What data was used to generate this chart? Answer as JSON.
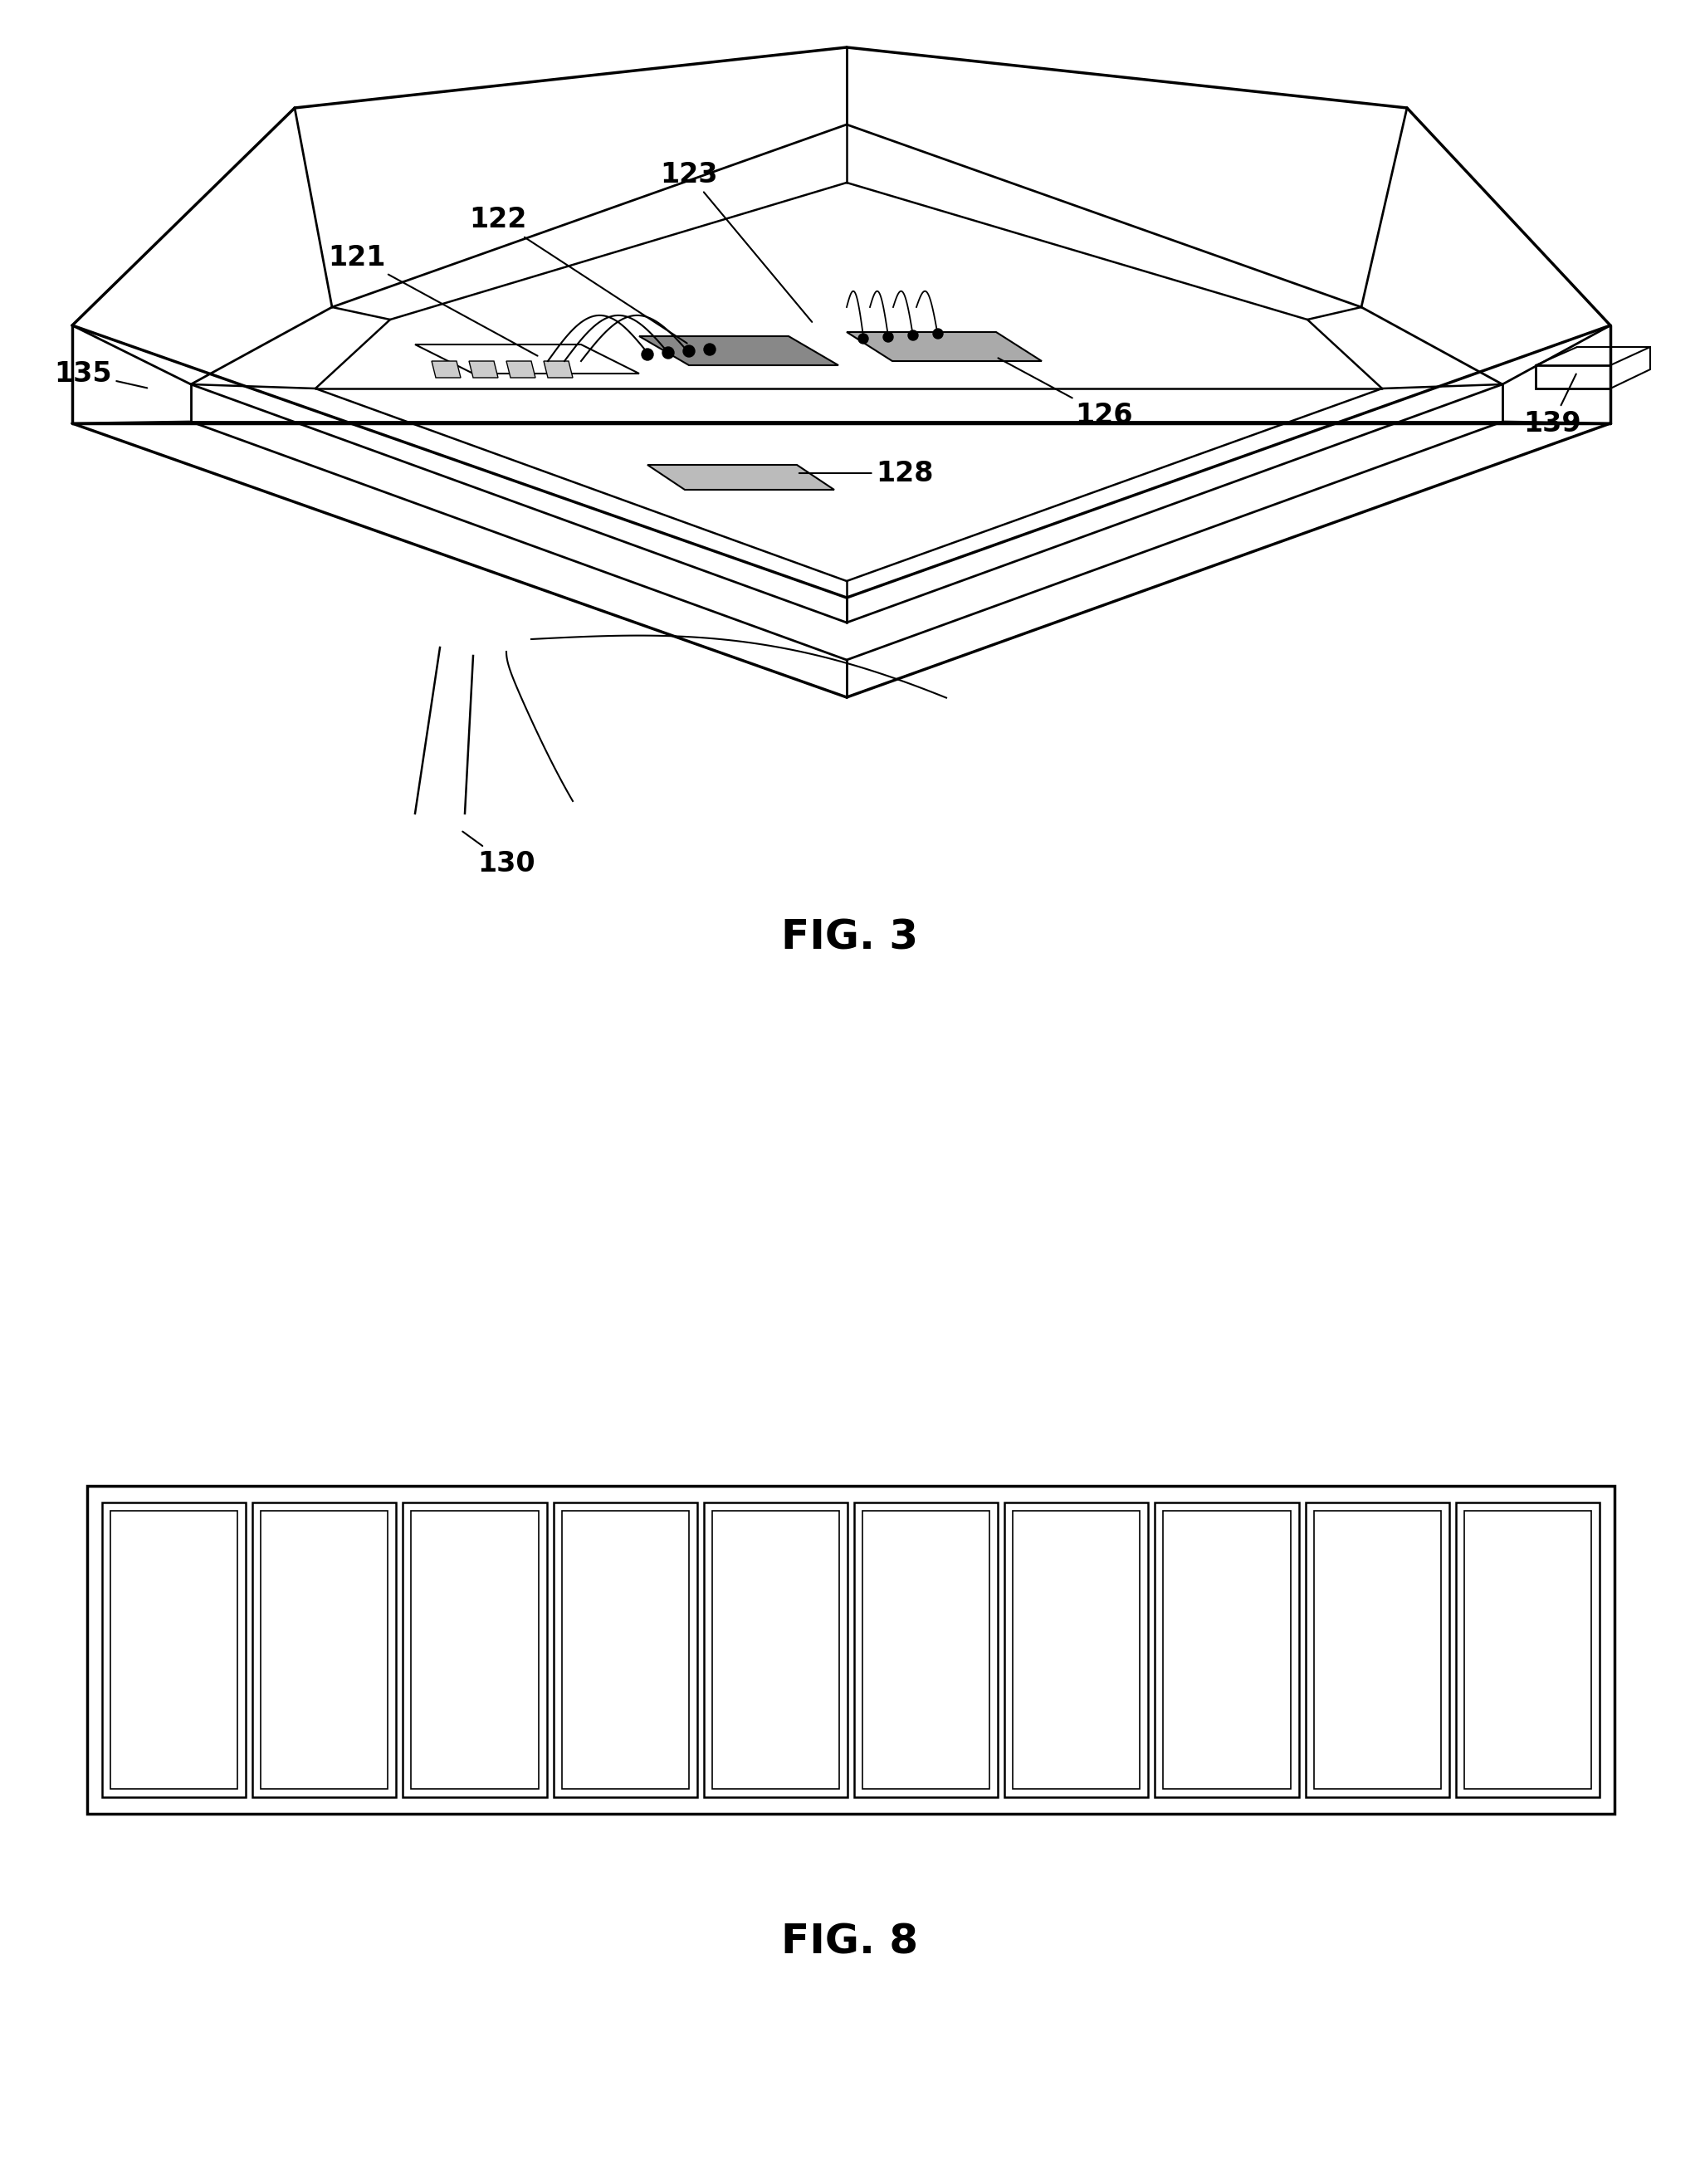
{
  "bg_color": "#ffffff",
  "line_color": "#000000",
  "fig3_title": "FIG. 3",
  "fig8_title": "FIG. 8",
  "num_cells_fig8": 10,
  "title_fontsize": 36,
  "label_fontsize": 24
}
